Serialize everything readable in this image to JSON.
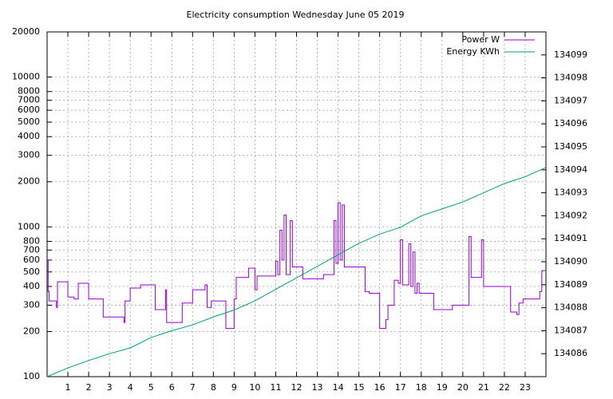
{
  "chart_data": {
    "type": "line",
    "title": "Electricity consumption Wednesday June 05 2019",
    "xlim": [
      0,
      24
    ],
    "xticks": [
      1,
      2,
      3,
      4,
      5,
      6,
      7,
      8,
      9,
      10,
      11,
      12,
      13,
      14,
      15,
      16,
      17,
      18,
      19,
      20,
      21,
      22,
      23
    ],
    "ylim": [
      100,
      20000
    ],
    "log_y": true,
    "yticks": [
      100,
      200,
      300,
      400,
      500,
      600,
      700,
      800,
      1000,
      2000,
      3000,
      4000,
      5000,
      6000,
      7000,
      8000,
      10000,
      20000
    ],
    "y2lim": [
      134085,
      134100
    ],
    "y2ticks": [
      134086,
      134087,
      134088,
      134089,
      134090,
      134091,
      134092,
      134093,
      134094,
      134095,
      134096,
      134097,
      134098,
      134099
    ],
    "grid": true,
    "legend": "top-right",
    "series": [
      {
        "name": "Power W",
        "color": "#9400d3",
        "step": true,
        "x": [
          0,
          0.05,
          0.1,
          0.45,
          0.5,
          1.0,
          1.3,
          1.5,
          2.0,
          2.7,
          3.7,
          3.75,
          4.0,
          4.5,
          5.2,
          5.7,
          5.75,
          6.5,
          7.0,
          7.6,
          7.7,
          7.9,
          8.6,
          9.0,
          9.1,
          9.7,
          10.0,
          10.1,
          11.0,
          11.1,
          11.2,
          11.3,
          11.4,
          11.5,
          11.7,
          11.8,
          12.3,
          13.3,
          13.8,
          13.9,
          14.0,
          14.1,
          14.2,
          14.3,
          15.3,
          15.5,
          16.0,
          16.3,
          16.4,
          16.7,
          16.9,
          17.0,
          17.1,
          17.4,
          17.5,
          17.6,
          17.7,
          17.8,
          17.9,
          18.6,
          19.5,
          20.0,
          20.3,
          20.4,
          20.9,
          21.0,
          22.0,
          22.3,
          22.6,
          22.7,
          22.9,
          23.7,
          23.8,
          24
        ],
        "values": [
          600,
          370,
          320,
          290,
          430,
          340,
          330,
          420,
          330,
          250,
          230,
          320,
          390,
          410,
          280,
          380,
          230,
          310,
          380,
          410,
          290,
          320,
          210,
          330,
          460,
          530,
          380,
          470,
          590,
          480,
          950,
          600,
          1200,
          480,
          1100,
          540,
          450,
          480,
          1100,
          570,
          1450,
          600,
          1400,
          540,
          370,
          360,
          210,
          240,
          300,
          440,
          420,
          820,
          410,
          770,
          400,
          680,
          360,
          420,
          360,
          280,
          300,
          300,
          860,
          460,
          820,
          400,
          400,
          270,
          260,
          310,
          330,
          370,
          510,
          510
        ]
      },
      {
        "name": "Energy KWh",
        "color": "#009e73",
        "axis": "y2",
        "x": [
          0,
          1,
          2,
          3,
          4,
          5,
          6,
          7,
          8,
          9,
          10,
          11,
          12,
          13,
          14,
          15,
          16,
          17,
          18,
          19,
          20,
          21,
          22,
          23,
          24
        ],
        "values": [
          134085,
          134085.38,
          134085.7,
          134086,
          134086.25,
          134086.7,
          134087,
          134087.25,
          134087.6,
          134087.9,
          134088.3,
          134088.8,
          134089.3,
          134089.8,
          134090.3,
          134090.8,
          134091.2,
          134091.5,
          134092,
          134092.3,
          134092.6,
          134093,
          134093.4,
          134093.7,
          134094.1
        ]
      }
    ]
  }
}
